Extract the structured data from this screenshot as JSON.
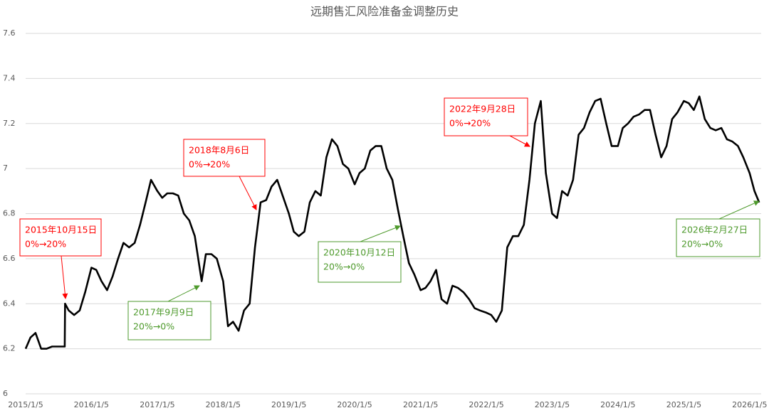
{
  "chart_data": {
    "type": "line",
    "title": "远期售汇风险准备金调整历史",
    "color": "#000000",
    "grid": true,
    "ylim": [
      6,
      7.6
    ],
    "yticks": [
      6,
      6.2,
      6.4,
      6.6,
      6.8,
      7,
      7.2,
      7.4,
      7.6
    ],
    "xlim": [
      "2015/1/5",
      "2026/3/10"
    ],
    "xticks": [
      "2015/1/5",
      "2016/1/5",
      "2017/1/5",
      "2018/1/5",
      "2019/1/5",
      "2020/1/5",
      "2021/1/5",
      "2022/1/5",
      "2023/1/5",
      "2024/1/5",
      "2025/1/5",
      "2026/1/5"
    ],
    "x": [
      "2015/1/5",
      "2015/2/1",
      "2015/3/1",
      "2015/4/1",
      "2015/5/1",
      "2015/6/1",
      "2015/7/1",
      "2015/8/10",
      "2015/8/12",
      "2015/9/1",
      "2015/10/1",
      "2015/11/1",
      "2015/12/1",
      "2016/1/5",
      "2016/2/1",
      "2016/3/1",
      "2016/4/1",
      "2016/5/1",
      "2016/6/1",
      "2016/7/1",
      "2016/8/1",
      "2016/9/1",
      "2016/10/1",
      "2016/11/1",
      "2016/12/1",
      "2017/1/5",
      "2017/2/1",
      "2017/3/1",
      "2017/4/1",
      "2017/5/1",
      "2017/6/1",
      "2017/7/1",
      "2017/8/1",
      "2017/9/8",
      "2017/10/1",
      "2017/11/1",
      "2017/12/1",
      "2018/1/5",
      "2018/2/1",
      "2018/3/1",
      "2018/4/1",
      "2018/5/1",
      "2018/6/1",
      "2018/7/1",
      "2018/8/1",
      "2018/9/1",
      "2018/10/1",
      "2018/11/1",
      "2018/12/1",
      "2019/1/5",
      "2019/2/1",
      "2019/3/1",
      "2019/4/1",
      "2019/5/1",
      "2019/6/1",
      "2019/7/1",
      "2019/8/1",
      "2019/9/1",
      "2019/10/1",
      "2019/11/1",
      "2019/12/1",
      "2020/1/5",
      "2020/2/1",
      "2020/3/1",
      "2020/4/1",
      "2020/5/1",
      "2020/6/1",
      "2020/7/1",
      "2020/8/1",
      "2020/9/1",
      "2020/10/1",
      "2020/11/1",
      "2020/12/1",
      "2021/1/5",
      "2021/2/1",
      "2021/3/1",
      "2021/4/1",
      "2021/5/1",
      "2021/6/1",
      "2021/7/1",
      "2021/8/1",
      "2021/9/1",
      "2021/10/1",
      "2021/11/1",
      "2021/12/1",
      "2022/1/5",
      "2022/2/1",
      "2022/3/1",
      "2022/4/1",
      "2022/5/1",
      "2022/6/1",
      "2022/7/1",
      "2022/8/1",
      "2022/9/1",
      "2022/10/1",
      "2022/11/3",
      "2022/12/1",
      "2023/1/5",
      "2023/2/1",
      "2023/3/1",
      "2023/4/1",
      "2023/5/1",
      "2023/6/1",
      "2023/7/1",
      "2023/8/1",
      "2023/9/1",
      "2023/10/1",
      "2023/11/1",
      "2023/12/1",
      "2024/1/5",
      "2024/2/1",
      "2024/3/1",
      "2024/4/1",
      "2024/5/1",
      "2024/6/1",
      "2024/7/1",
      "2024/8/1",
      "2024/9/1",
      "2024/10/1",
      "2024/11/1",
      "2024/12/1",
      "2025/1/5",
      "2025/2/1",
      "2025/3/1",
      "2025/4/1",
      "2025/5/1",
      "2025/6/1",
      "2025/7/1",
      "2025/8/1",
      "2025/9/1",
      "2025/10/1",
      "2025/11/1",
      "2025/12/1",
      "2026/1/5",
      "2026/2/1",
      "2026/2/27"
    ],
    "values": [
      6.2,
      6.25,
      6.27,
      6.2,
      6.2,
      6.21,
      6.21,
      6.21,
      6.4,
      6.37,
      6.35,
      6.37,
      6.45,
      6.56,
      6.55,
      6.5,
      6.46,
      6.52,
      6.6,
      6.67,
      6.65,
      6.67,
      6.75,
      6.85,
      6.95,
      6.9,
      6.87,
      6.89,
      6.89,
      6.88,
      6.8,
      6.77,
      6.7,
      6.5,
      6.62,
      6.62,
      6.6,
      6.5,
      6.3,
      6.32,
      6.28,
      6.37,
      6.4,
      6.65,
      6.85,
      6.86,
      6.92,
      6.95,
      6.88,
      6.8,
      6.72,
      6.7,
      6.72,
      6.85,
      6.9,
      6.88,
      7.05,
      7.13,
      7.1,
      7.02,
      7.0,
      6.93,
      6.98,
      7.0,
      7.08,
      7.1,
      7.1,
      7.0,
      6.95,
      6.82,
      6.7,
      6.58,
      6.53,
      6.46,
      6.47,
      6.5,
      6.55,
      6.42,
      6.4,
      6.48,
      6.47,
      6.45,
      6.42,
      6.38,
      6.37,
      6.36,
      6.35,
      6.32,
      6.37,
      6.65,
      6.7,
      6.7,
      6.75,
      6.95,
      7.2,
      7.3,
      6.98,
      6.8,
      6.78,
      6.9,
      6.88,
      6.95,
      7.15,
      7.18,
      7.25,
      7.3,
      7.31,
      7.2,
      7.1,
      7.1,
      7.18,
      7.2,
      7.23,
      7.24,
      7.26,
      7.26,
      7.15,
      7.05,
      7.1,
      7.22,
      7.25,
      7.3,
      7.29,
      7.26,
      7.32,
      7.22,
      7.18,
      7.17,
      7.18,
      7.13,
      7.12,
      7.1,
      7.05,
      6.98,
      6.9,
      6.85
    ],
    "annotations": [
      {
        "lines": [
          "2015年10月15日",
          "0%→20%"
        ],
        "color": "#ff0000"
      },
      {
        "lines": [
          "2017年9月9日",
          "20%→0%"
        ],
        "color": "#4e9a2c"
      },
      {
        "lines": [
          "2018年8月6日",
          "0%→20%"
        ],
        "color": "#ff0000"
      },
      {
        "lines": [
          "2020年10月12日",
          "20%→0%"
        ],
        "color": "#4e9a2c"
      },
      {
        "lines": [
          "2022年9月28日",
          "0%→20%"
        ],
        "color": "#ff0000"
      },
      {
        "lines": [
          "2026年2月27日",
          "20%→0%"
        ],
        "color": "#4e9a2c"
      }
    ]
  }
}
